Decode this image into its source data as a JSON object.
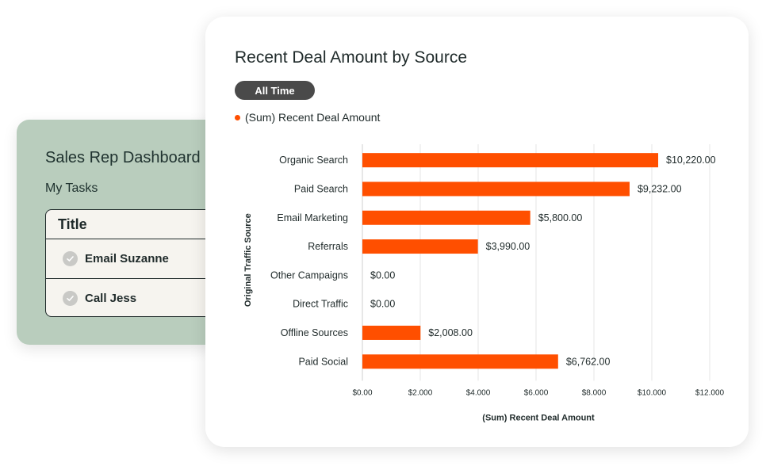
{
  "dashboard": {
    "title": "Sales Rep Dashboard",
    "subtitle": "My Tasks",
    "table_header": "Title",
    "tasks": [
      {
        "label": "Email Suzanne",
        "icon": "check-circle-icon"
      },
      {
        "label": "Call Jess",
        "icon": "check-circle-icon"
      }
    ]
  },
  "report": {
    "title": "Recent Deal Amount by Source",
    "filter_label": "All Time",
    "accent_color": "#ff4f00"
  },
  "chart_data": {
    "type": "bar",
    "orientation": "horizontal",
    "categories": [
      "Organic Search",
      "Paid Search",
      "Email Marketing",
      "Referrals",
      "Other Campaigns",
      "Direct Traffic",
      "Offline Sources",
      "Paid Social"
    ],
    "series": [
      {
        "name": "(Sum) Recent Deal Amount",
        "color": "#ff4f00",
        "values": [
          10220,
          9232,
          5800,
          3990,
          0,
          0,
          2008,
          6762
        ]
      }
    ],
    "data_labels": [
      "$10,220.00",
      "$9,232.00",
      "$5,800.00",
      "$3,990.00",
      "$0.00",
      "$0.00",
      "$2,008.00",
      "$6,762.00"
    ],
    "x_ticks": [
      0,
      2000,
      4000,
      6000,
      8000,
      10000,
      12000
    ],
    "x_tick_labels": [
      "$0.00",
      "$2.000",
      "$4.000",
      "$6.000",
      "$8.000",
      "$10.000",
      "$12.000"
    ],
    "xlabel": "(Sum) Recent Deal Amount",
    "ylabel": "Original Traffic Source",
    "xlim": [
      0,
      12000
    ],
    "grid": true,
    "legend_position": "top-left"
  }
}
